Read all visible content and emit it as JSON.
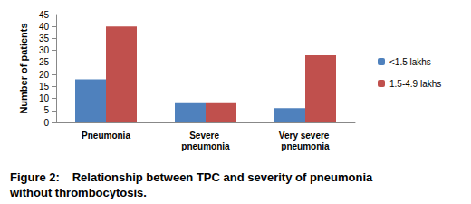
{
  "chart_data": {
    "type": "bar",
    "title": "Figure 2: Relationship between TPC and severity of pneumonia without thrombocytosis.",
    "y_label": "Number of patients",
    "categories": [
      "Pneumonia",
      "Severe pneumonia",
      "Very severe pneumonia"
    ],
    "series": [
      {
        "name": "<1.5 lakhs",
        "color": "#4f81bd",
        "values": [
          18,
          8,
          6
        ]
      },
      {
        "name": "1.5-4.9 lakhs",
        "color": "#c0504d",
        "values": [
          40,
          8,
          28
        ]
      }
    ],
    "ylim": [
      0,
      45
    ],
    "yticks": [
      0,
      5,
      10,
      15,
      20,
      25,
      30,
      35,
      40,
      45
    ],
    "grid": false,
    "legend": "right"
  }
}
